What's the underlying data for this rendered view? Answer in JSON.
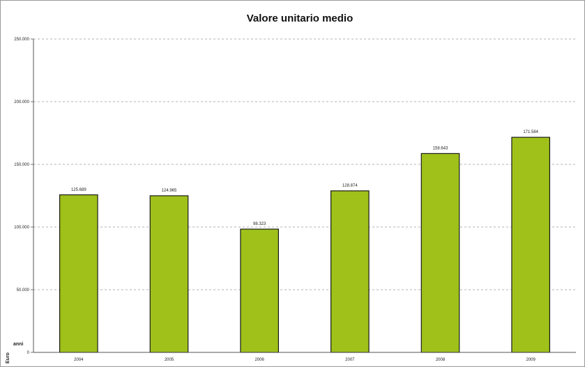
{
  "chart_data": {
    "type": "bar",
    "title": "Valore unitario medio",
    "xlabel": "anni",
    "ylabel": "Euro",
    "categories": [
      "2004",
      "2005",
      "2006",
      "2007",
      "2008",
      "2009"
    ],
    "values": [
      125689,
      124965,
      98323,
      128874,
      158643,
      171584
    ],
    "data_labels": [
      "125.689",
      "124.965",
      "98.323",
      "128.874",
      "158.643",
      "171.584"
    ],
    "ylim": [
      0,
      250000
    ],
    "yticks": [
      0,
      50000,
      100000,
      150000,
      200000,
      250000
    ],
    "ytick_labels": [
      "0",
      "50.000",
      "100.000",
      "150.000",
      "200.000",
      "250.000"
    ],
    "grid": true,
    "bar_color": "#9fc11a",
    "bar_edge_color": "#1a1a1a"
  }
}
